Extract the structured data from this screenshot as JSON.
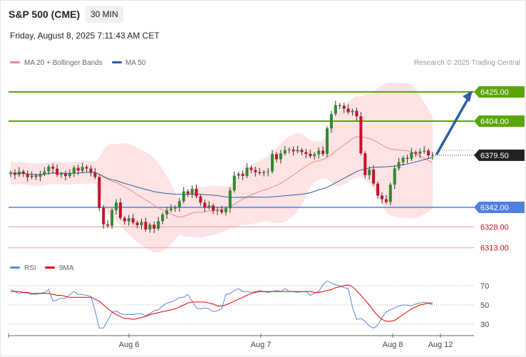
{
  "header": {
    "title": "S&P 500 (CME)",
    "timeframe": "30 MIN",
    "datetime": "Friday, August 8, 2025 7:11:43 AM CET"
  },
  "legend": {
    "ma20": {
      "label": "MA 20 + Bollinger Bands",
      "color": "#f08a8a"
    },
    "ma50": {
      "label": "MA 50",
      "color": "#2f5d9a"
    },
    "credit": "Research © 2025 Trading Central"
  },
  "rsi_legend": {
    "rsi": {
      "label": "RSI",
      "color": "#5b86e5"
    },
    "ma9": {
      "label": "9MA",
      "color": "#e00000"
    }
  },
  "colors": {
    "up": "#2e8b2e",
    "down": "#c8102e",
    "resistance": "#5aa60a",
    "support_blue": "#4f7fe0",
    "support_pink": "#f2a5ad",
    "arrow": "#2d5ea8",
    "band": "#fde3e3"
  },
  "chart_data": {
    "type": "candlestick",
    "x_ticks": [
      "Aug 6",
      "Aug 7",
      "Aug 8",
      "Aug 12"
    ],
    "last_price": "6379.50",
    "levels": [
      {
        "label": "6425.00",
        "value": 6425.0,
        "kind": "resistance"
      },
      {
        "label": "6404.00",
        "value": 6404.0,
        "kind": "resistance"
      },
      {
        "label": "6342.00",
        "value": 6342.0,
        "kind": "support"
      },
      {
        "label": "6328.00",
        "value": 6328.0,
        "kind": "minor-support"
      },
      {
        "label": "6313.00",
        "value": 6313.0,
        "kind": "minor-support"
      }
    ],
    "forecast_arrow": {
      "from": 6380.5,
      "to": 6425.0
    },
    "closes": [
      6367.0,
      6365.4,
      6367.8,
      6366.1,
      6363.7,
      6364.8,
      6364.0,
      6366.0,
      6367.8,
      6371.3,
      6369.8,
      6365.5,
      6366.1,
      6364.5,
      6366.2,
      6370.5,
      6368.4,
      6371.1,
      6369.9,
      6367.3,
      6363.8,
      6341.6,
      6329.8,
      6328.8,
      6340.0,
      6345.5,
      6334.4,
      6332.0,
      6334.2,
      6331.1,
      6329.2,
      6331.6,
      6326.1,
      6329.6,
      6326.7,
      6332.1,
      6336.9,
      6340.0,
      6341.2,
      6342.0,
      6346.4,
      6353.5,
      6351.8,
      6355.3,
      6349.9,
      6345.4,
      6341.8,
      6343.4,
      6339.6,
      6340.1,
      6338.5,
      6341.3,
      6354.2,
      6364.8,
      6366.2,
      6364.6,
      6370.6,
      6368.9,
      6367.3,
      6366.6,
      6367.4,
      6367.9,
      6380.3,
      6376.6,
      6380.9,
      6383.1,
      6383.6,
      6382.3,
      6383.3,
      6381.7,
      6380.5,
      6378.8,
      6380.2,
      6382.8,
      6380.4,
      6398.8,
      6409.1,
      6415.5,
      6414.9,
      6413.0,
      6410.4,
      6411.4,
      6407.5,
      6380.9,
      6365.2,
      6369.2,
      6359.1,
      6350.5,
      6347.9,
      6345.8,
      6358.3,
      6370.0,
      6374.5,
      6377.6,
      6376.9,
      6381.6,
      6380.6,
      6382.1,
      6382.8,
      6379.4,
      6379.5
    ],
    "rsi": {
      "levels": [
        70,
        50,
        30
      ],
      "range": [
        20,
        85
      ],
      "values": [
        66,
        64,
        62,
        63,
        62,
        61,
        61,
        62,
        63,
        66,
        54,
        55,
        57,
        57,
        61,
        64,
        61,
        61,
        60,
        59,
        44,
        26,
        26,
        34,
        42,
        44,
        41,
        40,
        40,
        40,
        41,
        41,
        39,
        41,
        44,
        45,
        49,
        52,
        53,
        55,
        58,
        58,
        61,
        54,
        47,
        46,
        47,
        46,
        43,
        44,
        46,
        61,
        62,
        65,
        67,
        64,
        64,
        63,
        64,
        65,
        64,
        63,
        64,
        65,
        64,
        67,
        64,
        64,
        63,
        64,
        64,
        60,
        62,
        64,
        71,
        75,
        73,
        71,
        70,
        68,
        67,
        48,
        35,
        36,
        33,
        28,
        26,
        29,
        37,
        43,
        45,
        47,
        49,
        50,
        50,
        49,
        51,
        52,
        53,
        52,
        50
      ],
      "ma9": [
        64,
        64,
        64,
        63,
        63,
        62,
        62,
        62,
        62,
        62,
        61,
        60,
        60,
        59,
        58,
        58,
        58,
        58,
        58,
        58,
        56,
        54,
        50,
        46,
        43,
        40,
        38,
        36,
        36,
        35,
        36,
        37,
        38,
        40,
        41,
        42,
        43,
        44,
        45,
        46,
        48,
        50,
        52,
        53,
        53,
        53,
        53,
        52,
        51,
        49,
        49,
        50,
        52,
        54,
        56,
        58,
        60,
        62,
        63,
        64,
        64,
        64,
        64,
        64,
        64,
        64,
        64,
        64,
        64,
        64,
        64,
        64,
        63,
        63,
        64,
        65,
        66,
        68,
        69,
        70,
        71,
        69,
        65,
        60,
        55,
        50,
        44,
        39,
        35,
        33,
        33,
        34,
        37,
        40,
        43,
        46,
        48,
        50,
        51,
        52,
        52
      ]
    }
  }
}
